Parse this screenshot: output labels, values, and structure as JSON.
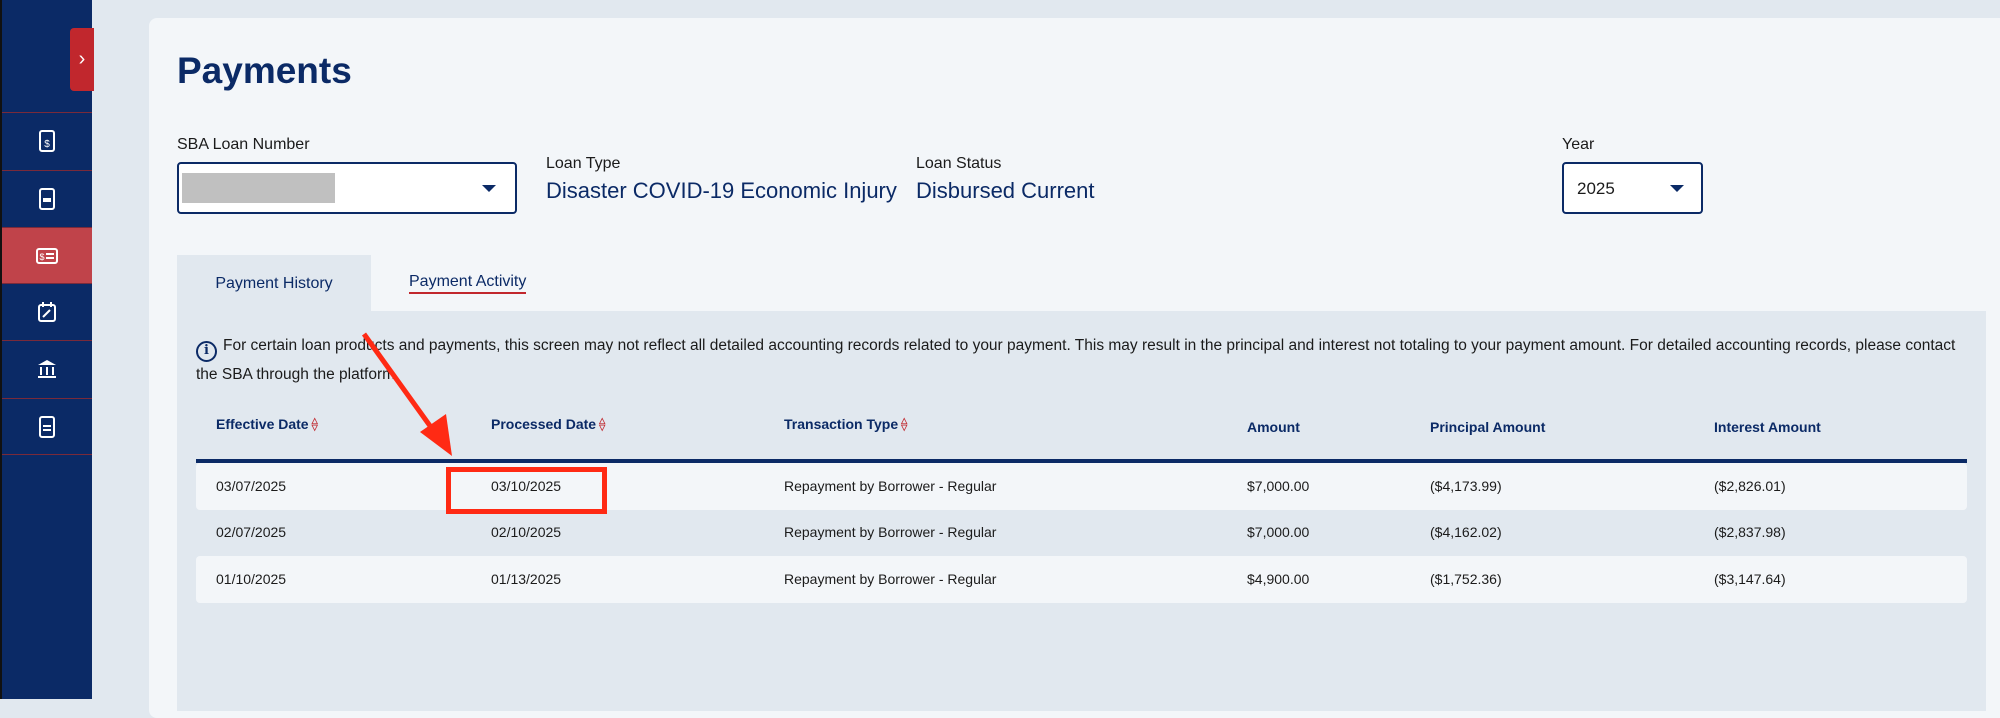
{
  "sidebar": {
    "items": [
      {
        "icon": "invoice-dollar-icon"
      },
      {
        "icon": "document-icon"
      },
      {
        "icon": "payment-card-icon",
        "active": true
      },
      {
        "icon": "calendar-edit-icon"
      },
      {
        "icon": "bank-icon"
      },
      {
        "icon": "file-text-icon"
      }
    ]
  },
  "page": {
    "title": "Payments"
  },
  "filters": {
    "loan_number_label": "SBA Loan Number",
    "loan_type_label": "Loan Type",
    "loan_type": "Disaster COVID-19 Economic Injury",
    "loan_status_label": "Loan Status",
    "loan_status": "Disbursed Current",
    "year_label": "Year",
    "year": "2025"
  },
  "tabs": [
    {
      "label": "Payment History",
      "active": true
    },
    {
      "label": "Payment Activity"
    }
  ],
  "notice": "For certain loan products and payments, this screen may not reflect all detailed accounting records related to your payment. This may result in the principal and interest not totaling to your payment amount. For detailed accounting records, please contact the SBA through the platform.",
  "table": {
    "headers": [
      "Effective Date",
      "Processed Date",
      "Transaction Type",
      "Amount",
      "Principal Amount",
      "Interest Amount"
    ],
    "rows": [
      [
        "03/07/2025",
        "03/10/2025",
        "Repayment by Borrower - Regular",
        "$7,000.00",
        "($4,173.99)",
        "($2,826.01)"
      ],
      [
        "02/07/2025",
        "02/10/2025",
        "Repayment by Borrower - Regular",
        "$7,000.00",
        "($4,162.02)",
        "($2,837.98)"
      ],
      [
        "01/10/2025",
        "01/13/2025",
        "Repayment by Borrower - Regular",
        "$4,900.00",
        "($1,752.36)",
        "($3,147.64)"
      ]
    ]
  },
  "colors": {
    "navy": "#0b2a66",
    "red": "#c1272d",
    "annotation": "#ff2a14"
  }
}
